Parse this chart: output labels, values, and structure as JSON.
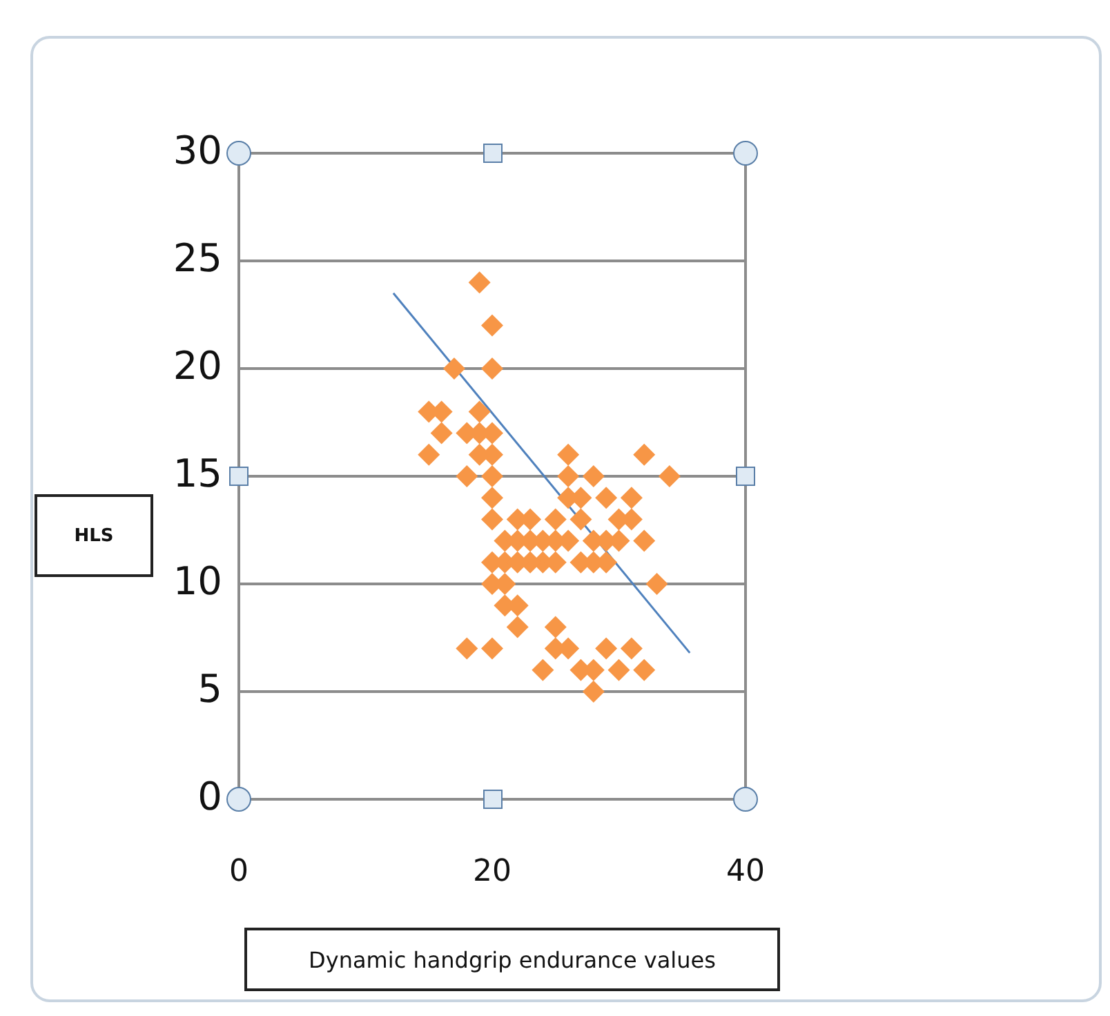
{
  "chart_data": {
    "type": "scatter",
    "xlabel": "Dynamic handgrip endurance values",
    "ylabel": "HLS",
    "xlim": [
      0,
      40
    ],
    "xticks": [
      0,
      20,
      40
    ],
    "ylim": [
      0,
      30
    ],
    "yticks": [
      0,
      5,
      10,
      15,
      20,
      25,
      30
    ],
    "grid": "y",
    "marker": "diamond",
    "series": [
      {
        "color": "#f79646",
        "x": [
          19,
          20,
          20,
          17,
          16,
          15,
          15,
          16,
          18,
          19,
          19,
          20,
          18,
          19,
          20,
          20,
          20,
          20,
          21,
          20,
          20,
          21,
          21,
          22,
          22,
          23,
          23,
          24,
          24,
          25,
          25,
          25,
          26,
          26,
          26,
          27,
          27,
          28,
          28,
          28,
          29,
          29,
          30,
          30,
          31,
          31,
          32,
          32,
          33,
          34,
          22,
          22,
          21,
          18,
          20,
          24,
          25,
          25,
          26,
          27,
          28,
          28,
          29,
          30,
          31,
          32,
          23,
          22,
          26,
          27,
          29
        ],
        "values": [
          24,
          22,
          20,
          20,
          18,
          18,
          16,
          17,
          17,
          18,
          17,
          17,
          15,
          16,
          16,
          15,
          14,
          13,
          12,
          11,
          10,
          10,
          11,
          12,
          13,
          12,
          13,
          12,
          11,
          11,
          12,
          13,
          14,
          15,
          16,
          13,
          14,
          15,
          12,
          11,
          11,
          14,
          13,
          12,
          14,
          13,
          16,
          12,
          10,
          15,
          9,
          8,
          9,
          7,
          7,
          6,
          8,
          7,
          7,
          6,
          5,
          6,
          7,
          6,
          7,
          6,
          11,
          11,
          12,
          11,
          12
        ]
      },
      {
        "type": "line",
        "color": "#4f81bd",
        "marker": "none",
        "x": [
          12.2,
          35.6
        ],
        "values": [
          23.5,
          6.8
        ]
      }
    ]
  }
}
